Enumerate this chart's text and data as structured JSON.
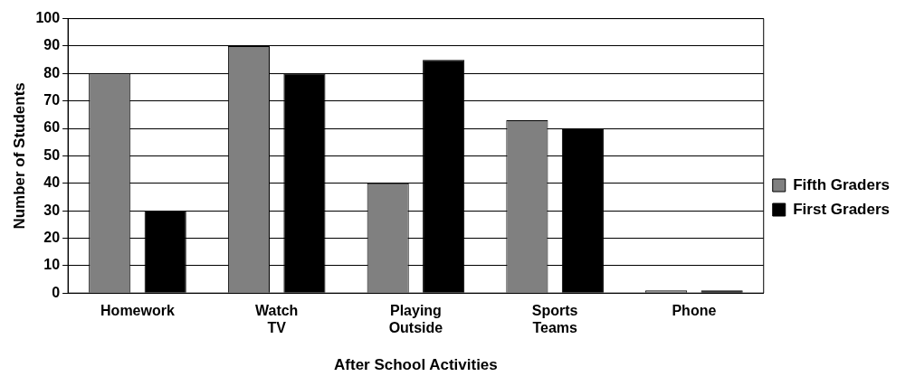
{
  "chart_data": {
    "type": "bar",
    "xlabel": "After School Activities",
    "ylabel": "Number of Students",
    "categories": [
      "Homework",
      "Watch TV",
      "Playing Outside",
      "Sports Teams",
      "Phone"
    ],
    "series": [
      {
        "name": "Fifth Graders",
        "color": "#808080",
        "values": [
          80,
          90,
          40,
          63,
          1
        ]
      },
      {
        "name": "First Graders",
        "color": "#000000",
        "values": [
          30,
          80,
          85,
          60,
          1
        ]
      }
    ],
    "ylim": [
      0,
      100
    ],
    "yticks": [
      0,
      10,
      20,
      30,
      40,
      50,
      60,
      70,
      80,
      90,
      100
    ],
    "grid": "y",
    "legend": "right"
  }
}
